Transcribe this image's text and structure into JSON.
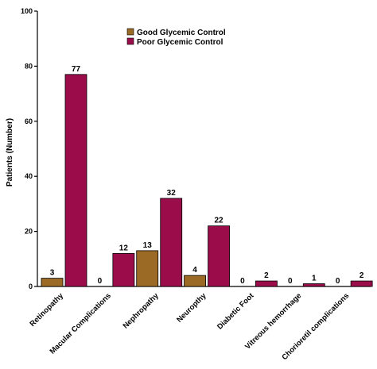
{
  "chart_data": {
    "type": "bar",
    "categories": [
      "Retinopathy",
      "Macular Complications",
      "Nephropathy",
      "Neuropthy",
      "Diabetic Foot",
      "Vitreous hemorrhage",
      "Chorioretil complications"
    ],
    "series": [
      {
        "name": "Good Glycemic Control",
        "values": [
          3,
          0,
          13,
          4,
          0,
          0,
          0
        ],
        "color": "#9b6a24"
      },
      {
        "name": "Poor Glycemic Control",
        "values": [
          77,
          12,
          32,
          22,
          2,
          1,
          2
        ],
        "color": "#9b0d4a"
      }
    ],
    "title": "",
    "xlabel": "",
    "ylabel": "Patients (Number)",
    "ylim": [
      0,
      100
    ],
    "yticks": [
      0,
      20,
      40,
      60,
      80,
      100
    ],
    "grid": false,
    "legend": "top-center"
  }
}
